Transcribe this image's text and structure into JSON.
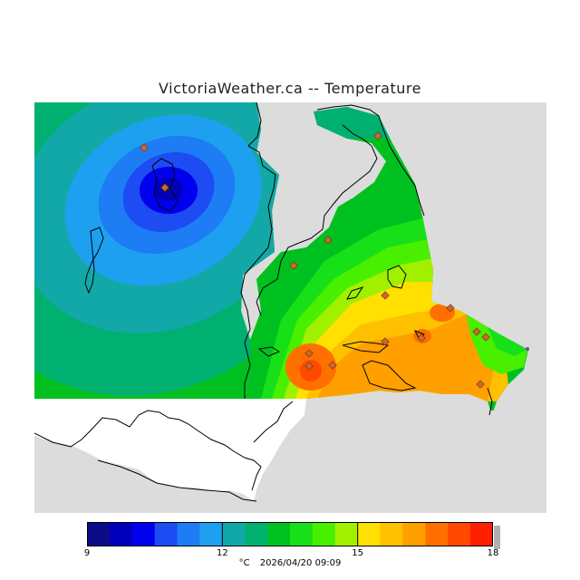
{
  "title": "VictoriaWeather.ca -- Temperature",
  "legend": {
    "min": 9,
    "max": 18,
    "ticks": [
      "9",
      "12",
      "15",
      "18"
    ],
    "colors": [
      "#0b0b88",
      "#0000bb",
      "#0000ee",
      "#1c4cf2",
      "#1e7cf4",
      "#1ea0f0",
      "#13a8a8",
      "#00b070",
      "#00c020",
      "#18e018",
      "#48f000",
      "#a0f000",
      "#ffe000",
      "#ffc000",
      "#ffa000",
      "#ff7000",
      "#ff4800",
      "#ff2000"
    ]
  },
  "footer": {
    "unit": "°C",
    "timestamp": "2026/04/20 09:09"
  },
  "map_colors": {
    "land_bg": "#dcdcdc",
    "sea_unforecast": "#ffffff",
    "coast": "#000000",
    "station": "#cc6633"
  }
}
